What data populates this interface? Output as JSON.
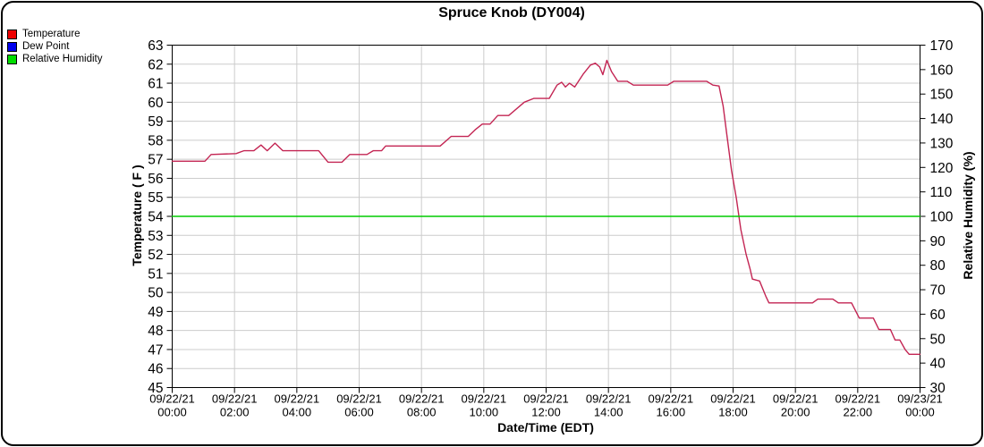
{
  "title": "Spruce Knob (DY004)",
  "legend": {
    "items": [
      {
        "label": "Temperature",
        "color": "#ee0000"
      },
      {
        "label": "Dew Point",
        "color": "#0000ee"
      },
      {
        "label": "Relative Humidity",
        "color": "#00dd00"
      }
    ]
  },
  "colors": {
    "temperature_line": "#c32553",
    "humidity_line": "#00cc00",
    "gridline": "#cccccc",
    "axis": "#000000"
  },
  "chart_data": {
    "type": "line",
    "title": "Spruce Knob (DY004)",
    "xlabel": "Date/Time (EDT)",
    "ylabel_left": "Temperature ( F )",
    "ylabel_right": "Relative Humidity (%)",
    "x_range_hours": [
      0,
      24
    ],
    "left_axis": {
      "min": 45,
      "max": 63,
      "tick_labels": [
        "45",
        "46",
        "47",
        "48",
        "49",
        "50",
        "51",
        "52",
        "53",
        "54",
        "55",
        "56",
        "57",
        "58",
        "59",
        "60",
        "61",
        "62",
        "63"
      ]
    },
    "right_axis": {
      "min": 30,
      "max": 170,
      "tick_labels": [
        "30",
        "40",
        "50",
        "60",
        "70",
        "80",
        "90",
        "100",
        "110",
        "120",
        "130",
        "140",
        "150",
        "160",
        "170"
      ]
    },
    "x_ticks": [
      {
        "date": "09/22/21",
        "time": "00:00"
      },
      {
        "date": "09/22/21",
        "time": "02:00"
      },
      {
        "date": "09/22/21",
        "time": "04:00"
      },
      {
        "date": "09/22/21",
        "time": "06:00"
      },
      {
        "date": "09/22/21",
        "time": "08:00"
      },
      {
        "date": "09/22/21",
        "time": "10:00"
      },
      {
        "date": "09/22/21",
        "time": "12:00"
      },
      {
        "date": "09/22/21",
        "time": "14:00"
      },
      {
        "date": "09/22/21",
        "time": "16:00"
      },
      {
        "date": "09/22/21",
        "time": "18:00"
      },
      {
        "date": "09/22/21",
        "time": "20:00"
      },
      {
        "date": "09/22/21",
        "time": "22:00"
      },
      {
        "date": "09/23/21",
        "time": "00:00"
      }
    ],
    "grid": true,
    "legend_position": "top-left",
    "series": [
      {
        "name": "Temperature",
        "axis": "left",
        "color": "#c32553",
        "points": [
          [
            0,
            56.9
          ],
          [
            1.05,
            56.9
          ],
          [
            1.25,
            57.25
          ],
          [
            2.05,
            57.3
          ],
          [
            2.3,
            57.45
          ],
          [
            2.62,
            57.45
          ],
          [
            2.85,
            57.75
          ],
          [
            3.05,
            57.45
          ],
          [
            3.3,
            57.85
          ],
          [
            3.55,
            57.45
          ],
          [
            4.7,
            57.45
          ],
          [
            5.0,
            56.85
          ],
          [
            5.45,
            56.85
          ],
          [
            5.7,
            57.25
          ],
          [
            6.25,
            57.25
          ],
          [
            6.45,
            57.45
          ],
          [
            6.72,
            57.45
          ],
          [
            6.85,
            57.7
          ],
          [
            8.6,
            57.7
          ],
          [
            8.95,
            58.2
          ],
          [
            9.5,
            58.2
          ],
          [
            9.72,
            58.55
          ],
          [
            9.95,
            58.85
          ],
          [
            10.2,
            58.85
          ],
          [
            10.45,
            59.3
          ],
          [
            10.8,
            59.3
          ],
          [
            11.3,
            60.0
          ],
          [
            11.6,
            60.2
          ],
          [
            12.1,
            60.2
          ],
          [
            12.35,
            60.9
          ],
          [
            12.5,
            61.05
          ],
          [
            12.62,
            60.8
          ],
          [
            12.75,
            61.0
          ],
          [
            12.92,
            60.8
          ],
          [
            13.2,
            61.5
          ],
          [
            13.42,
            61.95
          ],
          [
            13.58,
            62.05
          ],
          [
            13.72,
            61.85
          ],
          [
            13.82,
            61.45
          ],
          [
            13.95,
            62.2
          ],
          [
            14.1,
            61.6
          ],
          [
            14.3,
            61.1
          ],
          [
            14.6,
            61.1
          ],
          [
            14.8,
            60.9
          ],
          [
            15.9,
            60.9
          ],
          [
            16.1,
            61.1
          ],
          [
            17.15,
            61.1
          ],
          [
            17.35,
            60.9
          ],
          [
            17.55,
            60.85
          ],
          [
            17.68,
            59.8
          ],
          [
            17.8,
            58.3
          ],
          [
            17.95,
            56.4
          ],
          [
            18.1,
            55.0
          ],
          [
            18.25,
            53.3
          ],
          [
            18.42,
            52.0
          ],
          [
            18.55,
            51.2
          ],
          [
            18.62,
            50.7
          ],
          [
            18.85,
            50.6
          ],
          [
            19.05,
            49.8
          ],
          [
            19.15,
            49.45
          ],
          [
            20.55,
            49.45
          ],
          [
            20.72,
            49.65
          ],
          [
            21.2,
            49.65
          ],
          [
            21.38,
            49.45
          ],
          [
            21.8,
            49.45
          ],
          [
            22.05,
            48.65
          ],
          [
            22.5,
            48.65
          ],
          [
            22.68,
            48.05
          ],
          [
            23.05,
            48.05
          ],
          [
            23.2,
            47.5
          ],
          [
            23.35,
            47.5
          ],
          [
            23.52,
            47.0
          ],
          [
            23.65,
            46.75
          ],
          [
            24,
            46.75
          ]
        ]
      },
      {
        "name": "Dew Point",
        "axis": "left",
        "color": "#0000ee",
        "points": [],
        "note": "no separate blue trace visible in the plot"
      },
      {
        "name": "Relative Humidity",
        "axis": "right",
        "color": "#00cc00",
        "points": [
          [
            0,
            100
          ],
          [
            24,
            100
          ]
        ]
      }
    ]
  }
}
